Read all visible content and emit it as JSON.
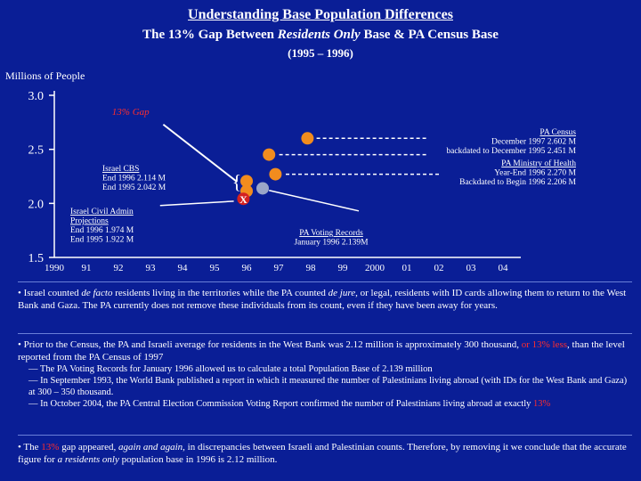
{
  "titles": {
    "main": "Understanding Base Population Differences",
    "sub_pre": "The 13% Gap Between ",
    "sub_em": "Residents Only",
    "sub_post": " Base & PA Census Base",
    "years": "(1995 – 1996)"
  },
  "chart_data": {
    "type": "scatter",
    "ylabel": "Millions of People",
    "ylim": [
      1.5,
      3.0
    ],
    "yticks": [
      "3.0",
      "2.5",
      "2.0",
      "1.5"
    ],
    "ytick_values": [
      3.0,
      2.5,
      2.0,
      1.5
    ],
    "xticks": [
      "1990",
      "91",
      "92",
      "93",
      "94",
      "95",
      "96",
      "97",
      "98",
      "99",
      "2000",
      "01",
      "02",
      "03",
      "04"
    ],
    "xtick_values": [
      1990,
      1991,
      1992,
      1993,
      1994,
      1995,
      1996,
      1997,
      1998,
      1999,
      2000,
      2001,
      2002,
      2003,
      2004
    ],
    "gap_label": "13% Gap",
    "points": [
      {
        "name": "PA Census Dec 1997",
        "x": 1997.9,
        "y": 2.602,
        "color": "#f28c1e"
      },
      {
        "name": "PA Census backdated Dec 1995",
        "x": 1996.7,
        "y": 2.451,
        "color": "#f28c1e"
      },
      {
        "name": "PA Ministry of Health year-end 1996",
        "x": 1996.9,
        "y": 2.27,
        "color": "#f28c1e"
      },
      {
        "name": "PA Ministry of Health begin 1996",
        "x": 1996.0,
        "y": 2.206,
        "color": "#f28c1e"
      },
      {
        "name": "Israel CBS end 1996",
        "x": 1996.0,
        "y": 2.114,
        "color": "#f28c1e"
      },
      {
        "name": "Israel CBS end 1995",
        "x": 1995.9,
        "y": 2.042,
        "color": "#d42020"
      },
      {
        "name": "PA Voting Records Jan 1996",
        "x": 1996.5,
        "y": 2.139,
        "color": "#9aa6c8"
      }
    ],
    "annotations": {
      "census": [
        "PA Census",
        "December 1997  2.602 M",
        "backdated to December 1995 2.451 M"
      ],
      "moh": [
        "PA Ministry of Health",
        "Year-End 1996  2.270 M",
        "Backdated to Begin 1996 2.206 M"
      ],
      "cbs": [
        "Israel CBS",
        "End 1996  2.114 M",
        "End 1995  2.042 M"
      ],
      "civil": [
        "Israel Civil Admin",
        "Projections",
        "End 1996  1.974 M",
        "End 1995  1.922 M"
      ],
      "voting": [
        "PA Voting Records",
        "January 1996  2.139M"
      ]
    },
    "x_marker": "X",
    "colors": {
      "axis": "#ffffff",
      "point": "#f28c1e",
      "gap": "#ff2d2d"
    }
  },
  "bullets": {
    "b1": {
      "bullet": "•",
      "p1": " Israel counted ",
      "em1": "de facto",
      "p2": " residents living in the territories while the PA counted ",
      "em2": "de jure",
      "p3": ", or legal,  residents with ID cards allowing them to return to the West Bank and Gaza.  The PA currently does not remove these individuals from its count, even if they have been away for years."
    },
    "b2": {
      "bullet": "•",
      "p1": " Prior to the Census, the PA and Israeli average for residents in the West Bank was 2.12 million is approximately 300 thousand, ",
      "red": "or 13% less",
      "p2": ", than the level reported from the PA Census of 1997",
      "subs": [
        {
          "dash": "—",
          "text": " The PA Voting Records for January 1996 allowed us to calculate a total Population Base of 2.139 million"
        },
        {
          "dash": "—",
          "text": " In September 1993, the World Bank published a report in which it measured the number of Palestinians living abroad (with IDs for the West Bank and Gaza) at 300 – 350 thousand."
        },
        {
          "dash": "—",
          "text": " In October 2004, the PA Central Election Commission Voting Report confirmed the number of Palestinians living abroad at exactly ",
          "red": "13%"
        }
      ]
    },
    "b3": {
      "bullet": "•",
      "p1": " The ",
      "red": "13%",
      "p2": " gap appeared, ",
      "em1": "again and again",
      "p3": ", in discrepancies between Israeli and Palestinian counts.  Therefore, by removing it we conclude that the accurate figure for ",
      "em2": "a residents only",
      "p4": " population base in 1996 is 2.12 million."
    }
  }
}
